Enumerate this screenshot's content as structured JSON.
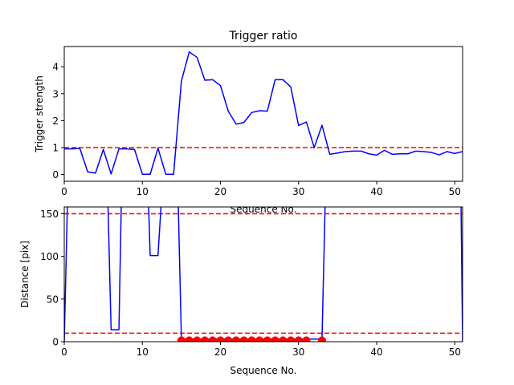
{
  "chart_data": [
    {
      "type": "line",
      "title": "Trigger ratio",
      "xlabel": "Sequence No.",
      "ylabel": "Trigger strength",
      "xlim": [
        0,
        51
      ],
      "ylim": [
        -0.25,
        4.75
      ],
      "xticks": [
        0,
        10,
        20,
        30,
        40,
        50
      ],
      "yticks": [
        0,
        1,
        2,
        3,
        4
      ],
      "grid": false,
      "series": [
        {
          "color": "#0000ff",
          "x": [
            0,
            1,
            2,
            3,
            4,
            5,
            6,
            7,
            8,
            9,
            10,
            11,
            12,
            13,
            14,
            15,
            16,
            17,
            18,
            19,
            20,
            21,
            22,
            23,
            24,
            25,
            26,
            27,
            28,
            29,
            30,
            31,
            32,
            33,
            34,
            35,
            36,
            37,
            38,
            39,
            40,
            41,
            42,
            43,
            44,
            45,
            46,
            47,
            48,
            49,
            50,
            51
          ],
          "values": [
            0.95,
            0.95,
            0.97,
            0.1,
            0.05,
            0.93,
            0.02,
            0.95,
            0.95,
            0.93,
            0.01,
            0.01,
            0.98,
            0.01,
            0.01,
            3.47,
            4.55,
            4.35,
            3.5,
            3.52,
            3.3,
            2.35,
            1.87,
            1.93,
            2.3,
            2.37,
            2.35,
            3.52,
            3.52,
            3.25,
            1.82,
            1.95,
            1.0,
            1.83,
            0.75,
            0.8,
            0.85,
            0.87,
            0.87,
            0.77,
            0.72,
            0.9,
            0.75,
            0.77,
            0.77,
            0.87,
            0.85,
            0.82,
            0.73,
            0.85,
            0.78,
            0.85
          ]
        }
      ],
      "reference_lines": [
        {
          "y": 1.0,
          "color": "#ff0000",
          "style": "dashed"
        }
      ]
    },
    {
      "type": "line",
      "title": "",
      "xlabel": "Sequence No.",
      "ylabel": "Distance [pix]",
      "xlim": [
        0,
        51
      ],
      "ylim": [
        0,
        158
      ],
      "xticks": [
        0,
        10,
        20,
        30,
        40,
        50
      ],
      "yticks": [
        0,
        50,
        100,
        150
      ],
      "grid": false,
      "series": [
        {
          "color": "#0000ff",
          "segments": [
            {
              "x": [
                0,
                0.4
              ],
              "values": [
                0,
                160
              ]
            },
            {
              "x": [
                5.6,
                6,
                7,
                7.3
              ],
              "values": [
                160,
                14,
                14,
                160
              ]
            },
            {
              "x": [
                10.8,
                11,
                12,
                12.4
              ],
              "values": [
                160,
                101,
                101,
                160
              ]
            },
            {
              "x": [
                14.6,
                15,
                16,
                17,
                18,
                19,
                20,
                21,
                22,
                23,
                24,
                25,
                26,
                27,
                28,
                29,
                30,
                31,
                32,
                33,
                33.4
              ],
              "values": [
                160,
                3,
                3,
                3,
                3,
                3,
                3,
                3,
                3,
                3,
                3,
                3,
                3,
                3,
                3,
                3,
                3,
                3,
                3,
                3,
                160
              ]
            },
            {
              "x": [
                50.8,
                51
              ],
              "values": [
                160,
                0
              ]
            }
          ]
        }
      ],
      "markers": {
        "color": "#ff0000",
        "x": [
          15,
          16,
          17,
          18,
          19,
          20,
          21,
          22,
          23,
          24,
          25,
          26,
          27,
          28,
          29,
          30,
          31,
          33
        ],
        "values": [
          1.5,
          1.5,
          1.5,
          1.5,
          1.5,
          1.5,
          1.5,
          1.5,
          1.5,
          1.5,
          1.5,
          1.5,
          1.5,
          1.5,
          1.5,
          1.5,
          1.5,
          1.5
        ]
      },
      "reference_lines": [
        {
          "y": 150,
          "color": "#ff0000",
          "style": "dashed"
        },
        {
          "y": 10,
          "color": "#ff0000",
          "style": "dashed"
        }
      ]
    }
  ]
}
